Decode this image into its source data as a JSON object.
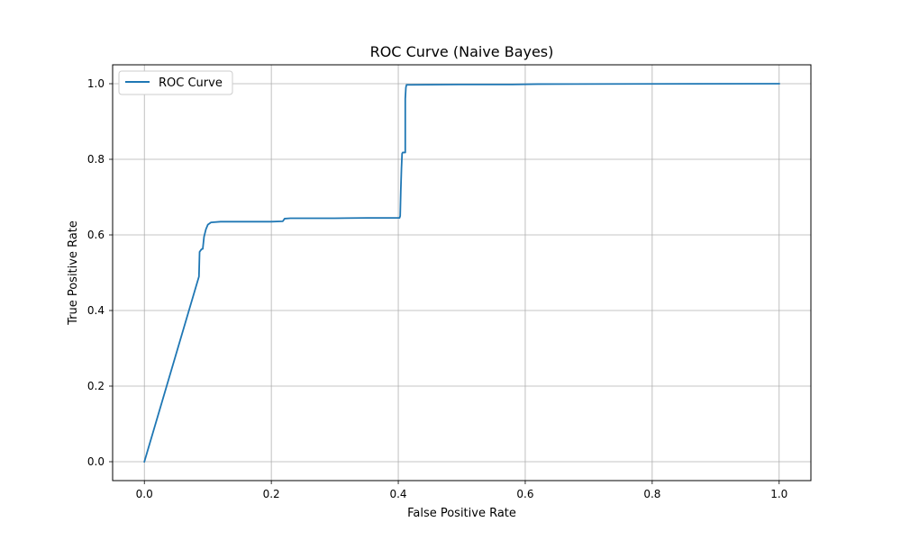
{
  "chart_data": {
    "type": "line",
    "title": "ROC Curve (Naive Bayes)",
    "xlabel": "False Positive Rate",
    "ylabel": "True Positive Rate",
    "xlim": [
      -0.05,
      1.05
    ],
    "ylim": [
      -0.05,
      1.05
    ],
    "xticks": [
      0.0,
      0.2,
      0.4,
      0.6,
      0.8,
      1.0
    ],
    "yticks": [
      0.0,
      0.2,
      0.4,
      0.6,
      0.8,
      1.0
    ],
    "xtick_labels": [
      "0.0",
      "0.2",
      "0.4",
      "0.6",
      "0.8",
      "1.0"
    ],
    "ytick_labels": [
      "0.0",
      "0.2",
      "0.4",
      "0.6",
      "0.8",
      "1.0"
    ],
    "grid": true,
    "legend_position": "top-left",
    "series": [
      {
        "name": "ROC Curve",
        "color": "#1f77b4",
        "x": [
          0.0,
          0.086,
          0.087,
          0.09,
          0.092,
          0.094,
          0.097,
          0.1,
          0.105,
          0.12,
          0.2,
          0.218,
          0.221,
          0.23,
          0.3,
          0.35,
          0.402,
          0.403,
          0.404,
          0.405,
          0.406,
          0.407,
          0.409,
          0.41,
          0.411,
          0.411,
          0.412,
          0.413,
          0.42,
          0.5,
          0.58,
          0.62,
          1.0
        ],
        "y": [
          0.0,
          0.49,
          0.555,
          0.562,
          0.563,
          0.595,
          0.615,
          0.627,
          0.633,
          0.635,
          0.635,
          0.636,
          0.643,
          0.644,
          0.644,
          0.645,
          0.645,
          0.65,
          0.72,
          0.775,
          0.815,
          0.818,
          0.818,
          0.818,
          0.818,
          0.96,
          0.99,
          0.997,
          0.997,
          0.998,
          0.998,
          0.999,
          1.0
        ]
      }
    ]
  }
}
